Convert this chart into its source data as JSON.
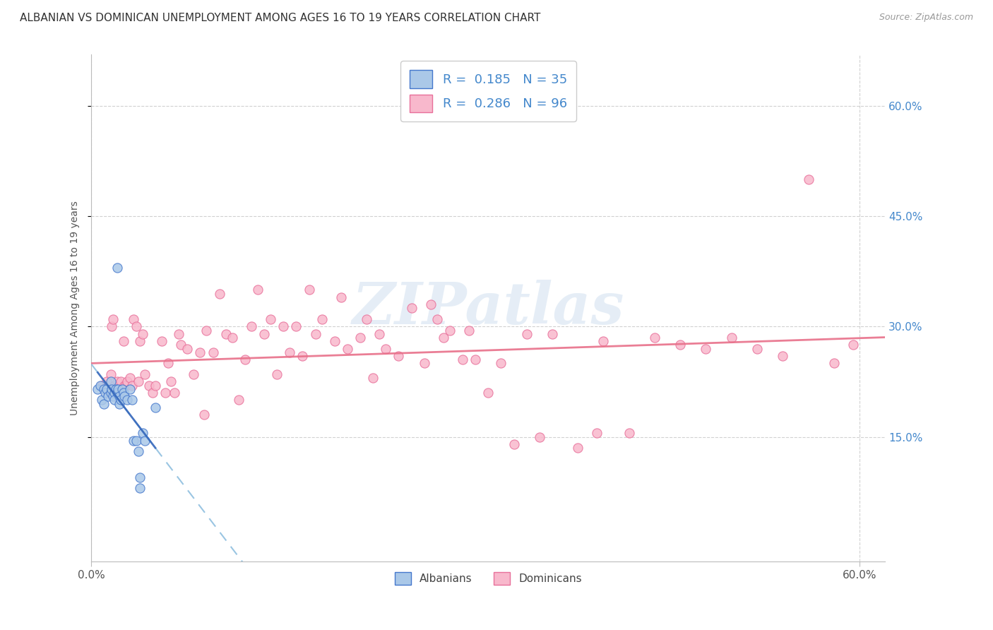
{
  "title": "ALBANIAN VS DOMINICAN UNEMPLOYMENT AMONG AGES 16 TO 19 YEARS CORRELATION CHART",
  "source": "Source: ZipAtlas.com",
  "ylabel": "Unemployment Among Ages 16 to 19 years",
  "xlim": [
    0.0,
    0.62
  ],
  "ylim": [
    -0.02,
    0.67
  ],
  "x_tick_positions": [
    0.0,
    0.6
  ],
  "x_tick_labels": [
    "0.0%",
    "60.0%"
  ],
  "y_ticks_right": [
    0.15,
    0.3,
    0.45,
    0.6
  ],
  "y_tick_labels_right": [
    "15.0%",
    "30.0%",
    "45.0%",
    "60.0%"
  ],
  "albanian_fill_color": "#aac8e8",
  "albanian_edge_color": "#4477cc",
  "dominican_fill_color": "#f8b8cc",
  "dominican_edge_color": "#e8709a",
  "albanian_solid_color": "#3366bb",
  "albanian_dashed_color": "#88bbdd",
  "dominican_trend_color": "#e8708a",
  "r_albanian": 0.185,
  "n_albanian": 35,
  "r_dominican": 0.286,
  "n_dominican": 96,
  "legend_label_1": "Albanians",
  "legend_label_2": "Dominicans",
  "background_color": "#ffffff",
  "grid_color": "#cccccc",
  "watermark_text": "ZIPatlas",
  "title_color": "#333333",
  "right_tick_color": "#4488cc",
  "albanian_x": [
    0.005,
    0.007,
    0.008,
    0.01,
    0.01,
    0.011,
    0.012,
    0.013,
    0.015,
    0.015,
    0.016,
    0.017,
    0.018,
    0.018,
    0.019,
    0.02,
    0.021,
    0.022,
    0.022,
    0.023,
    0.024,
    0.025,
    0.026,
    0.028,
    0.03,
    0.032,
    0.033,
    0.035,
    0.037,
    0.04,
    0.042,
    0.05,
    0.02,
    0.038,
    0.038
  ],
  "albanian_y": [
    0.215,
    0.22,
    0.2,
    0.215,
    0.195,
    0.21,
    0.215,
    0.205,
    0.225,
    0.21,
    0.215,
    0.205,
    0.21,
    0.2,
    0.215,
    0.21,
    0.215,
    0.205,
    0.195,
    0.2,
    0.215,
    0.21,
    0.205,
    0.2,
    0.215,
    0.2,
    0.145,
    0.145,
    0.13,
    0.155,
    0.145,
    0.19,
    0.38,
    0.095,
    0.08
  ],
  "dominican_x": [
    0.008,
    0.01,
    0.012,
    0.013,
    0.015,
    0.016,
    0.017,
    0.018,
    0.019,
    0.02,
    0.021,
    0.022,
    0.023,
    0.024,
    0.025,
    0.026,
    0.027,
    0.028,
    0.03,
    0.032,
    0.033,
    0.035,
    0.037,
    0.038,
    0.04,
    0.042,
    0.045,
    0.048,
    0.05,
    0.055,
    0.058,
    0.06,
    0.062,
    0.065,
    0.068,
    0.07,
    0.075,
    0.08,
    0.085,
    0.088,
    0.09,
    0.095,
    0.1,
    0.105,
    0.11,
    0.115,
    0.12,
    0.125,
    0.13,
    0.135,
    0.14,
    0.145,
    0.15,
    0.155,
    0.16,
    0.165,
    0.17,
    0.175,
    0.18,
    0.19,
    0.195,
    0.2,
    0.21,
    0.215,
    0.22,
    0.225,
    0.23,
    0.24,
    0.25,
    0.26,
    0.265,
    0.27,
    0.275,
    0.28,
    0.29,
    0.295,
    0.3,
    0.31,
    0.32,
    0.33,
    0.34,
    0.35,
    0.36,
    0.38,
    0.395,
    0.4,
    0.42,
    0.44,
    0.46,
    0.48,
    0.5,
    0.52,
    0.54,
    0.56,
    0.58,
    0.595
  ],
  "dominican_y": [
    0.22,
    0.215,
    0.225,
    0.21,
    0.235,
    0.3,
    0.31,
    0.22,
    0.215,
    0.225,
    0.205,
    0.215,
    0.225,
    0.215,
    0.28,
    0.22,
    0.22,
    0.225,
    0.23,
    0.22,
    0.31,
    0.3,
    0.225,
    0.28,
    0.29,
    0.235,
    0.22,
    0.21,
    0.22,
    0.28,
    0.21,
    0.25,
    0.225,
    0.21,
    0.29,
    0.275,
    0.27,
    0.235,
    0.265,
    0.18,
    0.295,
    0.265,
    0.345,
    0.29,
    0.285,
    0.2,
    0.255,
    0.3,
    0.35,
    0.29,
    0.31,
    0.235,
    0.3,
    0.265,
    0.3,
    0.26,
    0.35,
    0.29,
    0.31,
    0.28,
    0.34,
    0.27,
    0.285,
    0.31,
    0.23,
    0.29,
    0.27,
    0.26,
    0.325,
    0.25,
    0.33,
    0.31,
    0.285,
    0.295,
    0.255,
    0.295,
    0.255,
    0.21,
    0.25,
    0.14,
    0.29,
    0.15,
    0.29,
    0.135,
    0.155,
    0.28,
    0.155,
    0.285,
    0.275,
    0.27,
    0.285,
    0.27,
    0.26,
    0.5,
    0.25,
    0.275
  ]
}
